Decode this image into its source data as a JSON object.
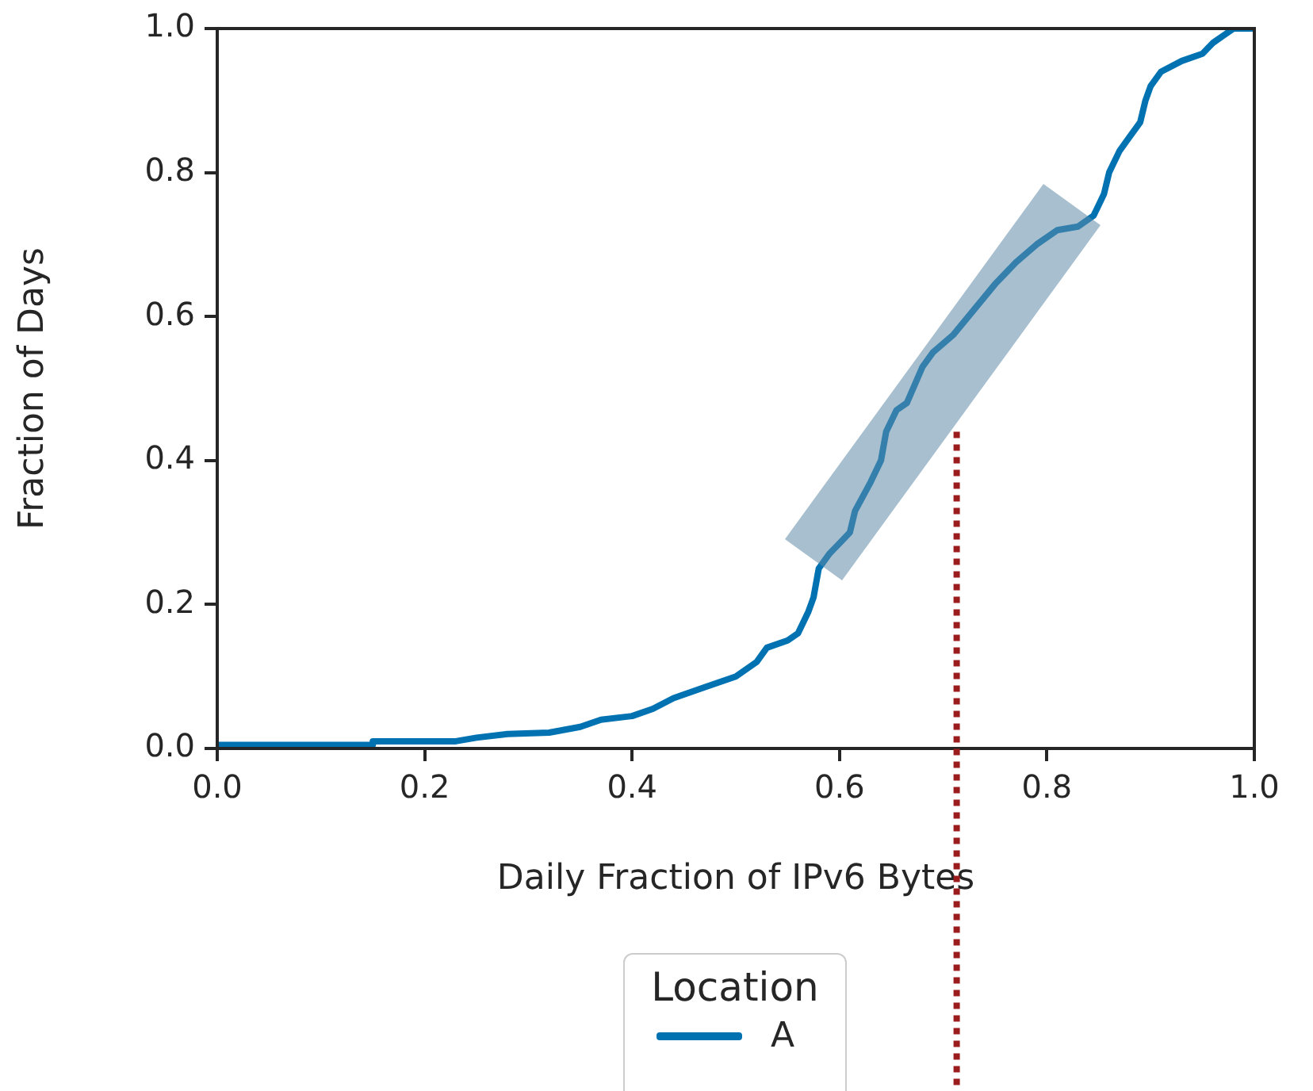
{
  "chart_data": {
    "type": "line",
    "xlabel": "Daily Fraction of IPv6 Bytes",
    "ylabel": "Fraction of Days",
    "legend_title": "Location",
    "legend": "bottom",
    "grid": false,
    "marker": "none",
    "line_style": "solid",
    "xlim": [
      0,
      1
    ],
    "ylim": [
      0,
      1
    ],
    "xticks": [
      {
        "value": 0,
        "label": "0.0"
      },
      {
        "value": 0.2,
        "label": "0.2"
      },
      {
        "value": 0.4,
        "label": "0.4"
      },
      {
        "value": 0.6,
        "label": "0.6"
      },
      {
        "value": 0.8,
        "label": "0.8"
      },
      {
        "value": 1,
        "label": "1.0"
      }
    ],
    "yticks": [
      {
        "value": 0,
        "label": "0.0"
      },
      {
        "value": 0.2,
        "label": "0.2"
      },
      {
        "value": 0.4,
        "label": "0.4"
      },
      {
        "value": 0.6,
        "label": "0.6"
      },
      {
        "value": 0.8,
        "label": "0.8"
      },
      {
        "value": 1,
        "label": "1.0"
      }
    ],
    "ref_lines": [
      {
        "axis": "x",
        "value": 0.713,
        "color": "#9b1c1c",
        "line_style": "dotted"
      }
    ],
    "series": [
      {
        "name": "A",
        "color": "#0072b2",
        "x": [
          0,
          0.15,
          0.15,
          0.23,
          0.25,
          0.28,
          0.32,
          0.35,
          0.37,
          0.4,
          0.42,
          0.44,
          0.47,
          0.5,
          0.52,
          0.53,
          0.55,
          0.56,
          0.57,
          0.575,
          0.58,
          0.59,
          0.6,
          0.61,
          0.615,
          0.63,
          0.64,
          0.645,
          0.655,
          0.665,
          0.68,
          0.69,
          0.71,
          0.73,
          0.75,
          0.77,
          0.79,
          0.81,
          0.83,
          0.845,
          0.855,
          0.86,
          0.87,
          0.88,
          0.89,
          0.895,
          0.9,
          0.91,
          0.93,
          0.95,
          0.96,
          0.97,
          0.98,
          1
        ],
        "values": [
          0.005,
          0.005,
          0.01,
          0.01,
          0.015,
          0.02,
          0.022,
          0.03,
          0.04,
          0.045,
          0.055,
          0.07,
          0.085,
          0.1,
          0.12,
          0.14,
          0.15,
          0.16,
          0.19,
          0.21,
          0.25,
          0.27,
          0.285,
          0.3,
          0.33,
          0.37,
          0.4,
          0.44,
          0.47,
          0.48,
          0.53,
          0.55,
          0.575,
          0.61,
          0.645,
          0.675,
          0.7,
          0.72,
          0.725,
          0.74,
          0.77,
          0.8,
          0.83,
          0.85,
          0.87,
          0.9,
          0.92,
          0.94,
          0.955,
          0.965,
          0.98,
          0.99,
          1,
          1
        ]
      }
    ]
  }
}
